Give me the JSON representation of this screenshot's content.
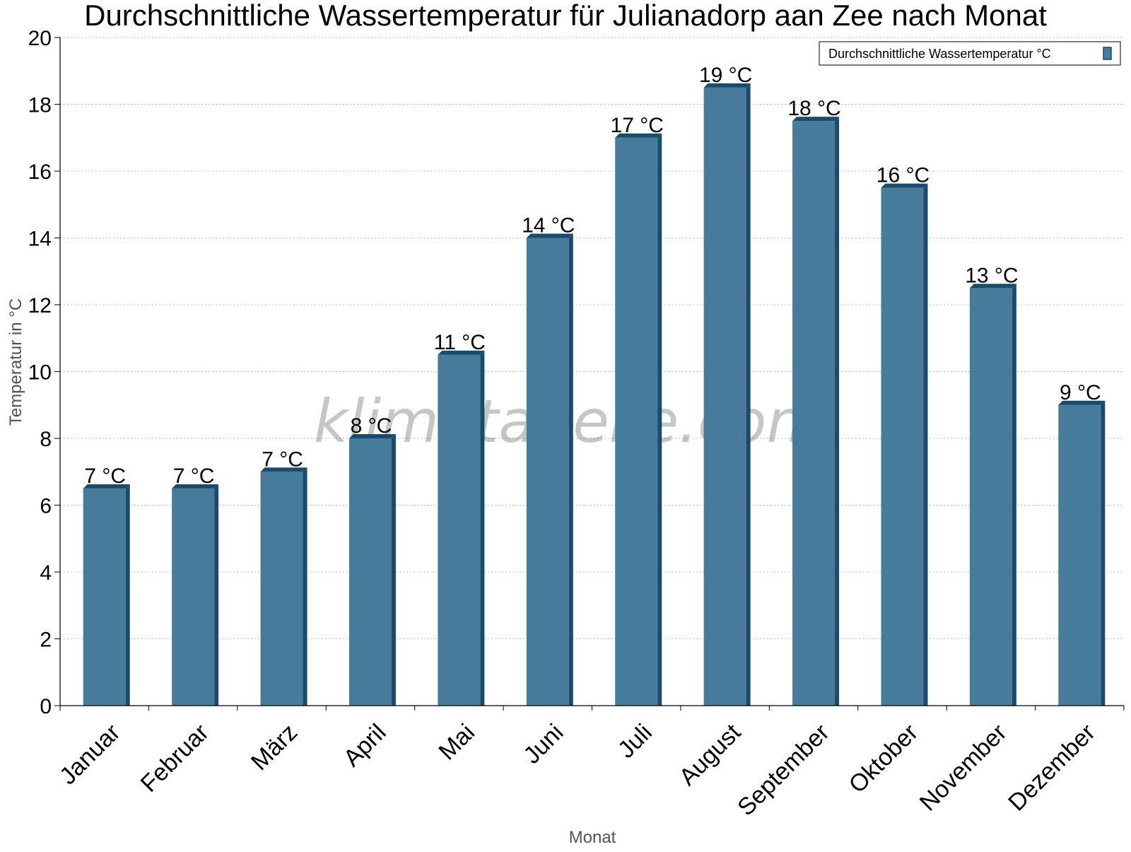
{
  "chart_data": {
    "type": "bar",
    "title": "Durchschnittliche Wassertemperatur für Julianadorp aan Zee nach Monat",
    "xlabel": "Monat",
    "ylabel": "Temperatur in °C",
    "ylim": [
      0,
      20
    ],
    "ytick_step": 2,
    "grid": true,
    "legend_position": "top-right",
    "watermark": "klimatabelle.com",
    "colors": {
      "bar": "#467b9c",
      "bar_side": "#1c4a6b",
      "bar_top": "#1c4a6b",
      "grid": "#bbbbbb"
    },
    "categories": [
      "Januar",
      "Februar",
      "März",
      "April",
      "Mai",
      "Juni",
      "Juli",
      "August",
      "September",
      "Oktober",
      "November",
      "Dezember"
    ],
    "series": [
      {
        "name": "Durchschnittliche Wassertemperatur °C",
        "values": [
          6.5,
          6.5,
          7,
          8,
          10.5,
          14,
          17,
          18.5,
          17.5,
          15.5,
          12.5,
          9
        ],
        "labels": [
          "7 °C",
          "7 °C",
          "7 °C",
          "8 °C",
          "11 °C",
          "14 °C",
          "17 °C",
          "19 °C",
          "18 °C",
          "16 °C",
          "13 °C",
          "9 °C"
        ]
      }
    ]
  }
}
